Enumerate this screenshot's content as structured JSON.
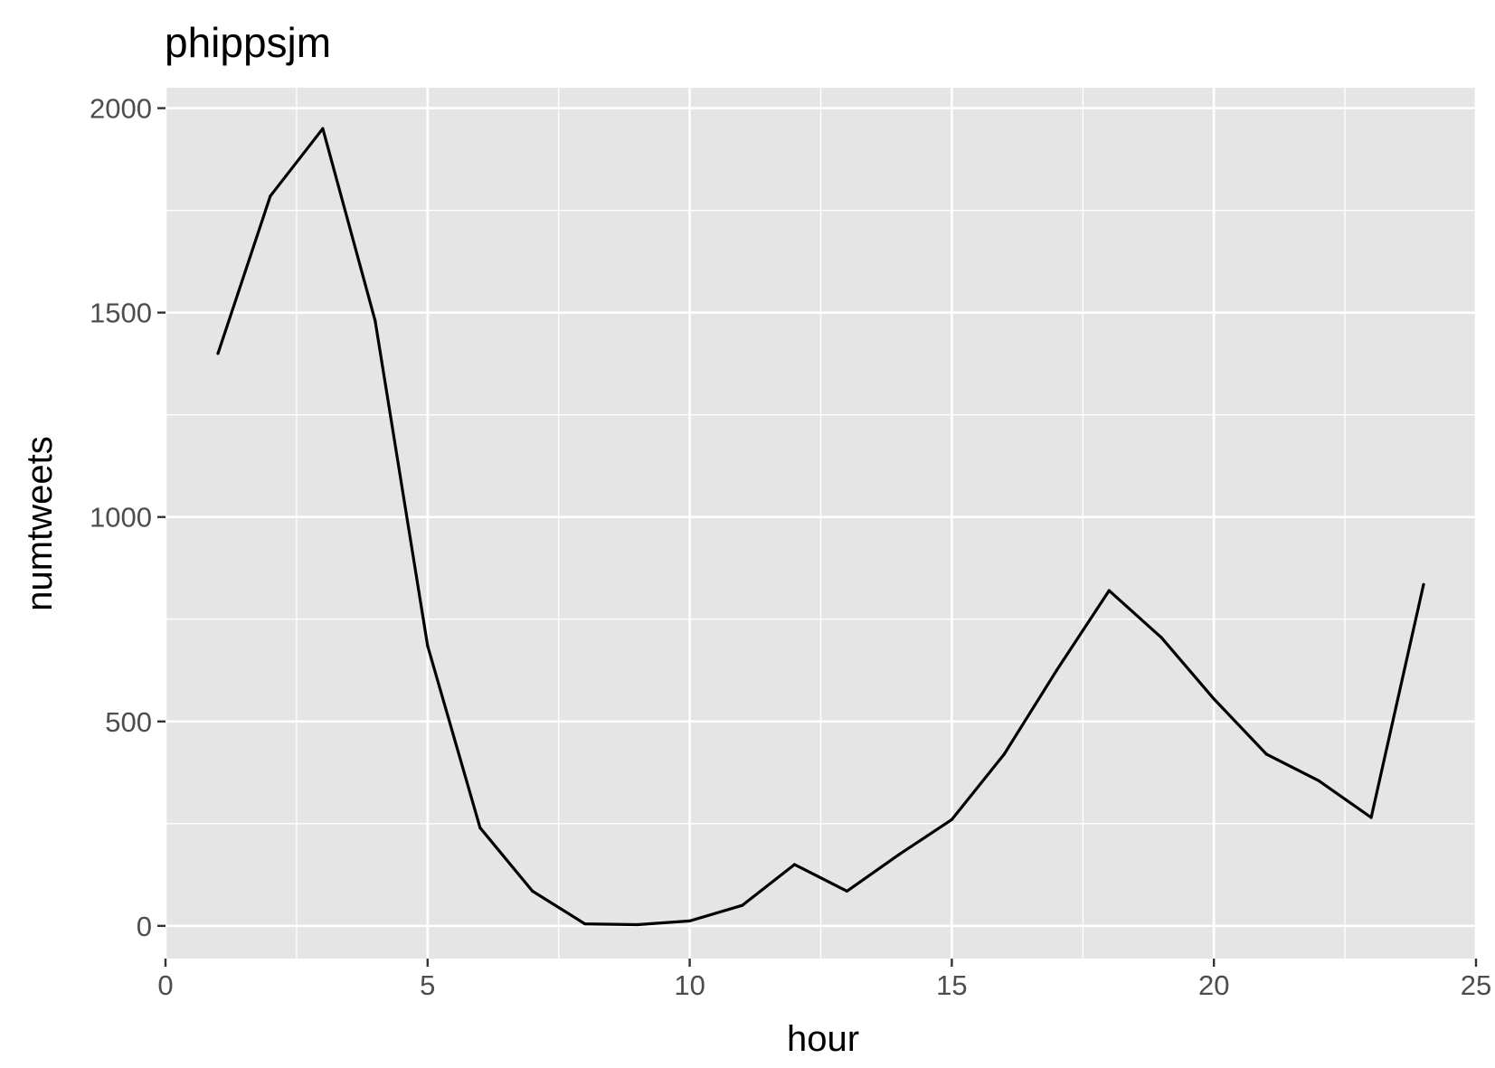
{
  "chart_data": {
    "type": "line",
    "title": "phippsjm",
    "xlabel": "hour",
    "ylabel": "numtweets",
    "xlim": [
      0,
      25
    ],
    "ylim": [
      -80,
      2050
    ],
    "x_ticks": [
      0,
      5,
      10,
      15,
      20,
      25
    ],
    "x_tick_labels": [
      "0",
      "5",
      "10",
      "15",
      "20",
      "25"
    ],
    "y_ticks": [
      0,
      500,
      1000,
      1500,
      2000
    ],
    "y_tick_labels": [
      "0",
      "500",
      "1000",
      "1500",
      "2000"
    ],
    "grid": true,
    "legend": "none",
    "colors": {
      "panel": "#e5e5e5",
      "grid": "#ffffff",
      "line": "#000000",
      "tick": "#333333"
    },
    "series": [
      {
        "x": [
          1,
          2,
          3,
          4,
          5,
          6,
          7,
          8,
          9,
          10,
          11,
          12,
          13,
          14,
          15,
          16,
          17,
          18,
          19,
          20,
          21,
          22,
          23,
          24
        ],
        "values": [
          1400,
          1785,
          1950,
          1480,
          685,
          240,
          85,
          5,
          3,
          12,
          50,
          150,
          85,
          175,
          260,
          420,
          625,
          820,
          705,
          555,
          420,
          355,
          265,
          835
        ]
      }
    ]
  }
}
